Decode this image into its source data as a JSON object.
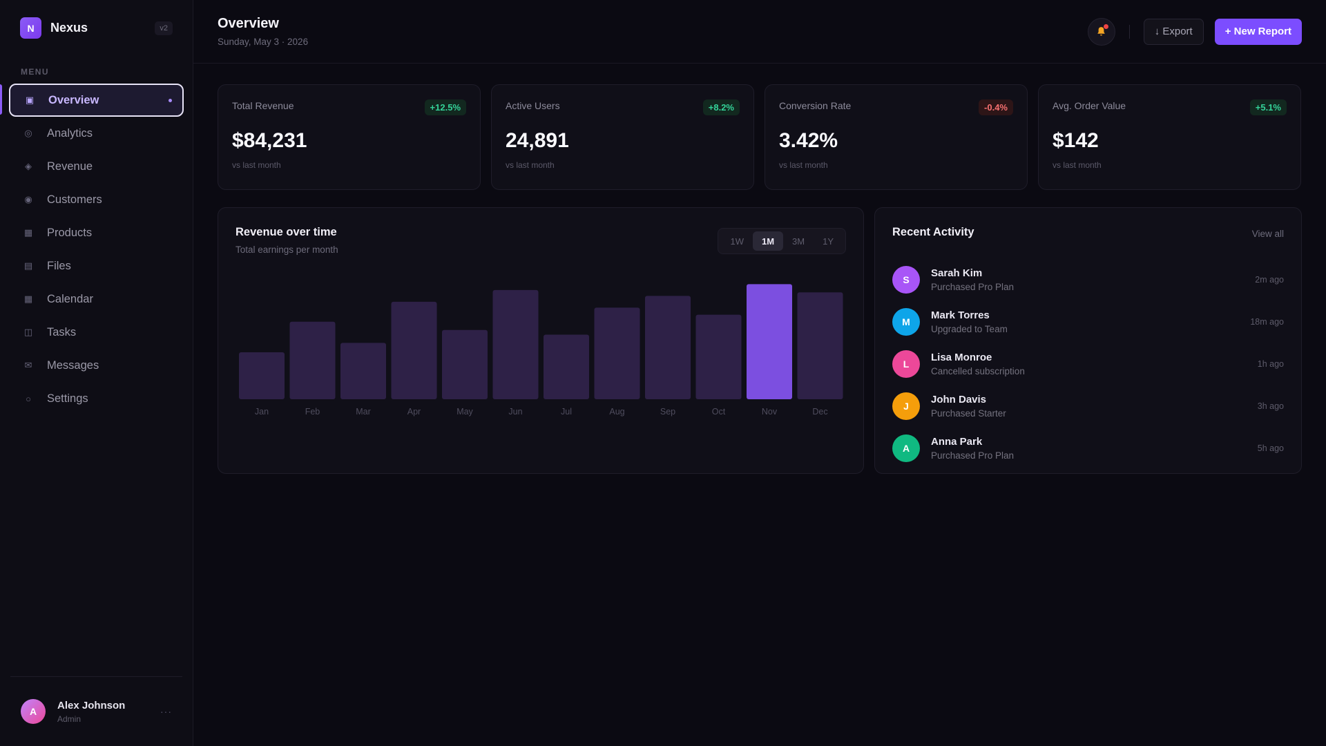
{
  "brand": {
    "logo_letter": "N",
    "name": "Nexus",
    "version": "v2"
  },
  "menu_label": "MENU",
  "nav": [
    {
      "label": "Overview",
      "icon": "square-icon",
      "active": true
    },
    {
      "label": "Analytics",
      "icon": "circle-ring-icon"
    },
    {
      "label": "Revenue",
      "icon": "diamond-icon"
    },
    {
      "label": "Customers",
      "icon": "dot-circle-icon"
    },
    {
      "label": "Products",
      "icon": "box-icon"
    },
    {
      "label": "Files",
      "icon": "file-icon"
    },
    {
      "label": "Calendar",
      "icon": "calendar-icon"
    },
    {
      "label": "Tasks",
      "icon": "columns-icon"
    },
    {
      "label": "Messages",
      "icon": "mail-icon"
    },
    {
      "label": "Settings",
      "icon": "gear-icon"
    }
  ],
  "user": {
    "initial": "A",
    "name": "Alex Johnson",
    "role": "Admin",
    "more": "···"
  },
  "header": {
    "title": "Overview",
    "date": "Sunday, May 3 · 2026",
    "export_label": "↓ Export",
    "new_report_label": "+ New Report"
  },
  "stats": [
    {
      "label": "Total Revenue",
      "value": "$84,231",
      "delta": "+12.5%",
      "trend": "up",
      "sub": "vs last month"
    },
    {
      "label": "Active Users",
      "value": "24,891",
      "delta": "+8.2%",
      "trend": "up",
      "sub": "vs last month"
    },
    {
      "label": "Conversion Rate",
      "value": "3.42%",
      "delta": "-0.4%",
      "trend": "down",
      "sub": "vs last month"
    },
    {
      "label": "Avg. Order Value",
      "value": "$142",
      "delta": "+5.1%",
      "trend": "up",
      "sub": "vs last month"
    }
  ],
  "chart_panel": {
    "title": "Revenue over time",
    "subtitle": "Total earnings per month",
    "ranges": [
      "1W",
      "1M",
      "3M",
      "1Y"
    ],
    "active_range": "1M"
  },
  "chart_data": {
    "type": "bar",
    "categories": [
      "Jan",
      "Feb",
      "Mar",
      "Apr",
      "May",
      "Jun",
      "Jul",
      "Aug",
      "Sep",
      "Oct",
      "Nov",
      "Dec"
    ],
    "values": [
      40,
      66,
      48,
      83,
      59,
      93,
      55,
      78,
      88,
      72,
      98,
      91
    ],
    "ylim": [
      0,
      100
    ],
    "highlight": "Nov",
    "bar_color": "#2e2147",
    "highlight_color": "#7c4fe0",
    "grid": false
  },
  "activity": {
    "title": "Recent Activity",
    "view_all": "View all",
    "items": [
      {
        "initial": "S",
        "name": "Sarah Kim",
        "desc": "Purchased Pro Plan",
        "time": "2m ago",
        "color": "#a855f7"
      },
      {
        "initial": "M",
        "name": "Mark Torres",
        "desc": "Upgraded to Team",
        "time": "18m ago",
        "color": "#0ea5e9"
      },
      {
        "initial": "L",
        "name": "Lisa Monroe",
        "desc": "Cancelled subscription",
        "time": "1h ago",
        "color": "#ec4899"
      },
      {
        "initial": "J",
        "name": "John Davis",
        "desc": "Purchased Starter",
        "time": "3h ago",
        "color": "#f59e0b"
      },
      {
        "initial": "A",
        "name": "Anna Park",
        "desc": "Purchased Pro Plan",
        "time": "5h ago",
        "color": "#10b981"
      }
    ]
  },
  "colors": {
    "accent": "#7c4dff",
    "up": "#34d399",
    "down": "#f87171"
  }
}
